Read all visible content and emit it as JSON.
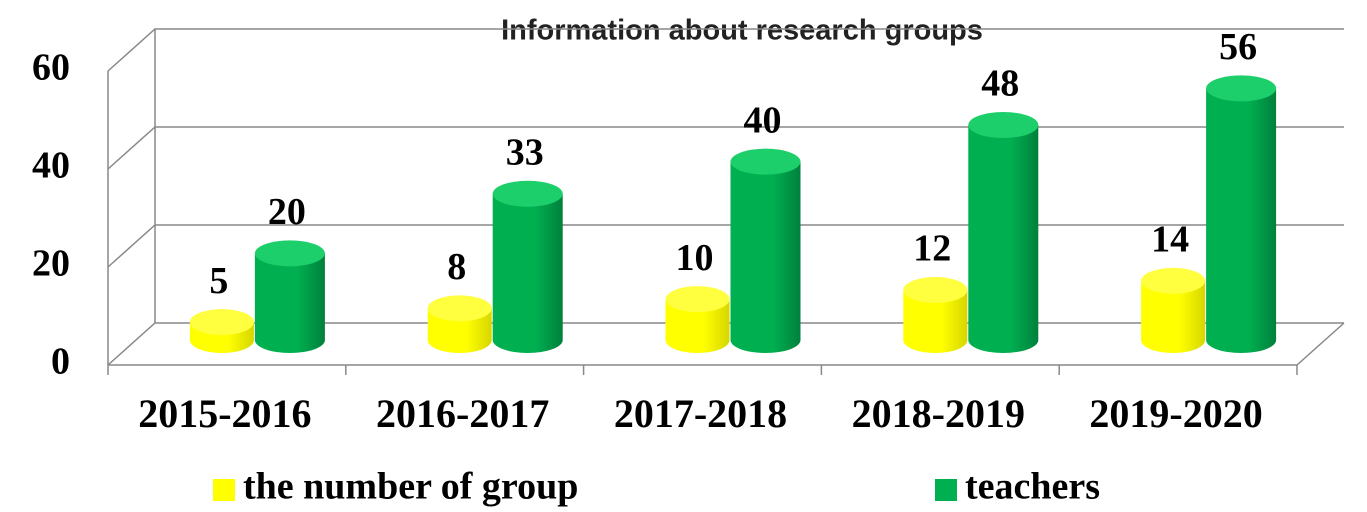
{
  "chart_data": {
    "type": "bar3d",
    "title": "Information about research groups",
    "categories": [
      "2015-2016",
      "2016-2017",
      "2017-2018",
      "2018-2019",
      "2019-2020"
    ],
    "series": [
      {
        "name": "the number of group",
        "color": "#ffff00",
        "values": [
          5,
          8,
          10,
          12,
          14
        ]
      },
      {
        "name": "teachers",
        "color": "#00b050",
        "values": [
          20,
          33,
          40,
          48,
          56
        ]
      }
    ],
    "ylim": [
      0,
      60
    ],
    "yticks": [
      0,
      20,
      40,
      60
    ],
    "grid": true,
    "legend": "bottom"
  }
}
